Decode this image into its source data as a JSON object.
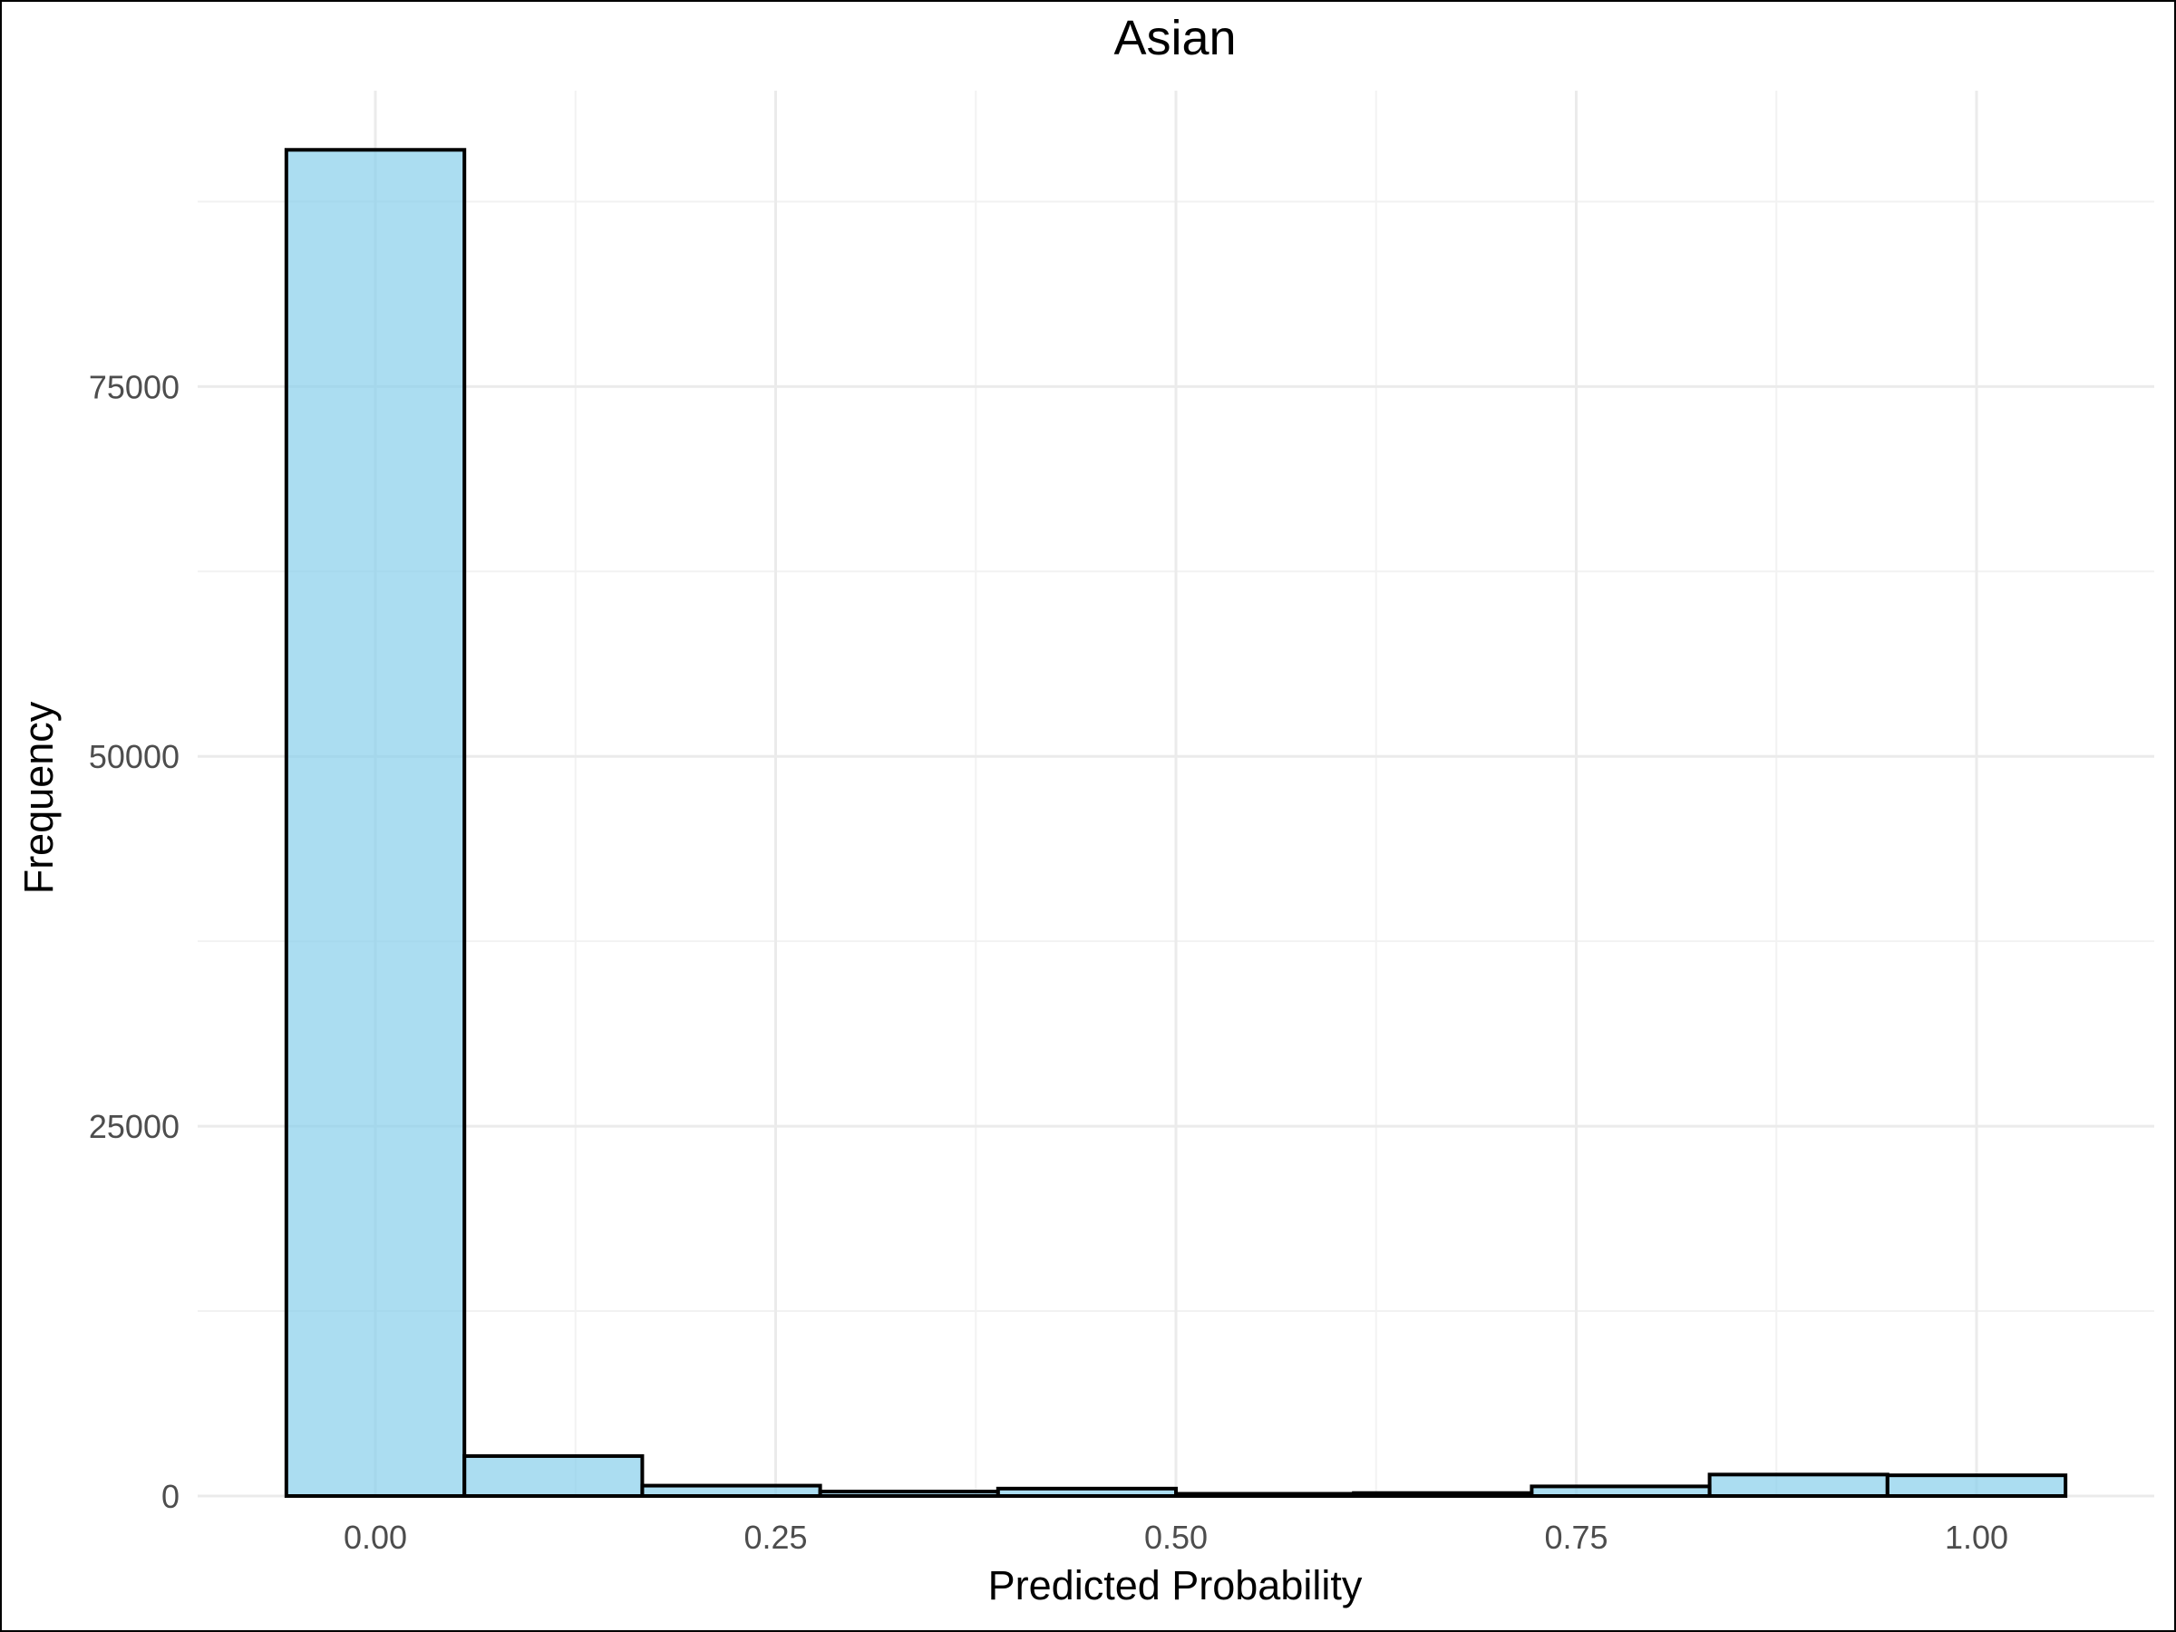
{
  "chart_data": {
    "type": "bar",
    "title": "Asian",
    "xlabel": "Predicted Probability",
    "ylabel": "Frequency",
    "xlim": [
      -0.111,
      1.111
    ],
    "ylim": [
      0,
      95000
    ],
    "x_ticks": [
      {
        "value": 0.0,
        "label": "0.00"
      },
      {
        "value": 0.25,
        "label": "0.25"
      },
      {
        "value": 0.5,
        "label": "0.50"
      },
      {
        "value": 0.75,
        "label": "0.75"
      },
      {
        "value": 1.0,
        "label": "1.00"
      }
    ],
    "y_ticks": [
      {
        "value": 0,
        "label": "0"
      },
      {
        "value": 25000,
        "label": "25000"
      },
      {
        "value": 50000,
        "label": "50000"
      },
      {
        "value": 75000,
        "label": "75000"
      }
    ],
    "x_minor": [
      0.125,
      0.375,
      0.625,
      0.875
    ],
    "y_minor": [
      12500,
      37500,
      62500,
      87500
    ],
    "bins": [
      {
        "x0": -0.0556,
        "x1": 0.0556,
        "count": 91000
      },
      {
        "x0": 0.0556,
        "x1": 0.1667,
        "count": 2700
      },
      {
        "x0": 0.1667,
        "x1": 0.2778,
        "count": 700
      },
      {
        "x0": 0.2778,
        "x1": 0.3889,
        "count": 300
      },
      {
        "x0": 0.3889,
        "x1": 0.5,
        "count": 500
      },
      {
        "x0": 0.5,
        "x1": 0.6111,
        "count": 150
      },
      {
        "x0": 0.6111,
        "x1": 0.7222,
        "count": 200
      },
      {
        "x0": 0.7222,
        "x1": 0.8333,
        "count": 650
      },
      {
        "x0": 0.8333,
        "x1": 0.9444,
        "count": 1450
      },
      {
        "x0": 0.9444,
        "x1": 1.0556,
        "count": 1400
      }
    ],
    "grid": true,
    "bar_fill": "#87CEEB",
    "bar_stroke": "#000000"
  }
}
